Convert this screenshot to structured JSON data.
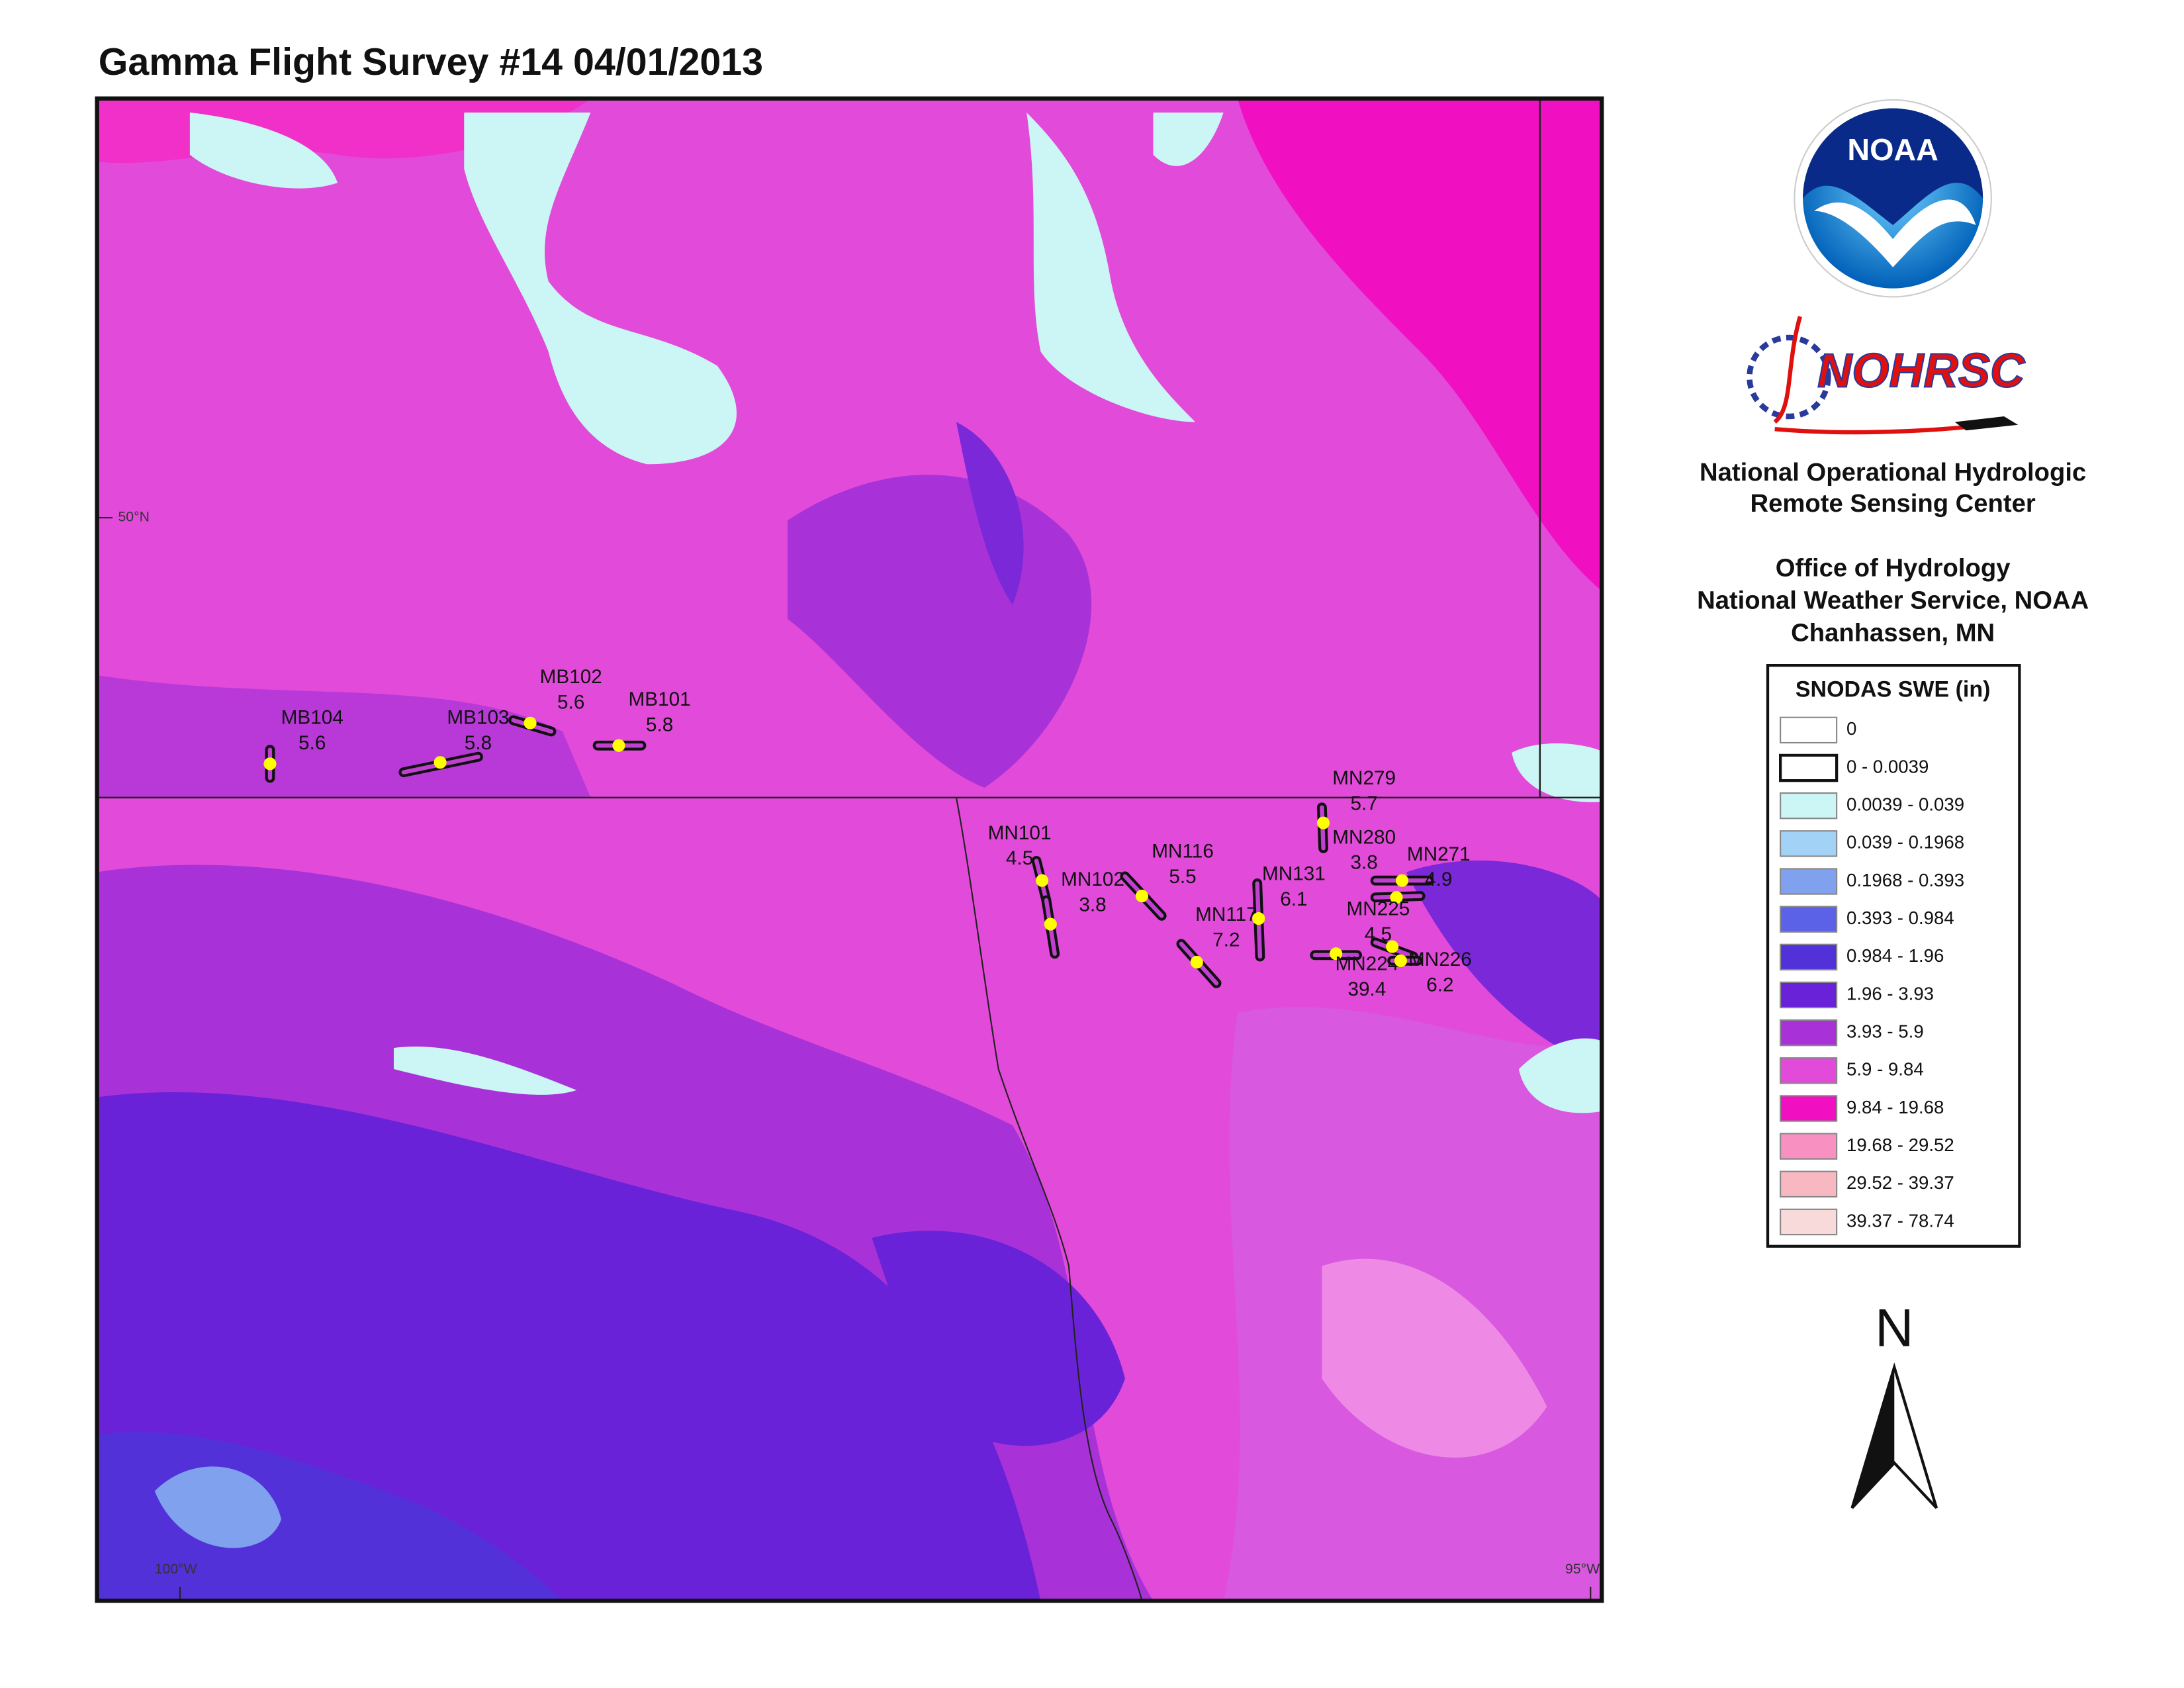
{
  "title": "Gamma Flight Survey #14 04/01/2013",
  "map": {
    "lat_labels": [
      "50°N"
    ],
    "lon_labels": [
      "100°W",
      "95°W"
    ]
  },
  "flight_lines": [
    {
      "name": "MB104",
      "swe": 5.6
    },
    {
      "name": "MB103",
      "swe": 5.8
    },
    {
      "name": "MB102",
      "swe": 5.6
    },
    {
      "name": "MB101",
      "swe": 5.8
    },
    {
      "name": "MN279",
      "swe": 5.7
    },
    {
      "name": "MN101",
      "swe": 4.5
    },
    {
      "name": "MN102",
      "swe": 3.8
    },
    {
      "name": "MN116",
      "swe": 5.5
    },
    {
      "name": "MN117",
      "swe": 7.2
    },
    {
      "name": "MN131",
      "swe": 6.1
    },
    {
      "name": "MN280",
      "swe": 3.8
    },
    {
      "name": "MN271",
      "swe": 4.9
    },
    {
      "name": "MN225",
      "swe": 4.5
    },
    {
      "name": "MN224",
      "swe": 39.4
    },
    {
      "name": "MN226",
      "swe": 6.2
    }
  ],
  "logos": {
    "noaa": "NOAA",
    "nohrsc": "NOHRSC"
  },
  "agency": [
    "National Operational Hydrologic",
    "Remote Sensing Center",
    "Office of Hydrology",
    "National Weather Service, NOAA",
    "Chanhassen, MN"
  ],
  "legend": {
    "title": "SNODAS SWE (in)",
    "items": [
      {
        "label": "0",
        "color": "#ffffff"
      },
      {
        "label": "0 - 0.0039",
        "color": "#ffffff"
      },
      {
        "label": "0.0039 - 0.039",
        "color": "#ccf5f5"
      },
      {
        "label": "0.039 - 0.1968",
        "color": "#a2d2f6"
      },
      {
        "label": "0.1968 - 0.393",
        "color": "#80a2ee"
      },
      {
        "label": "0.393 - 0.984",
        "color": "#5c62e8"
      },
      {
        "label": "0.984 - 1.96",
        "color": "#5232d8"
      },
      {
        "label": "1.96 - 3.93",
        "color": "#6a22d8"
      },
      {
        "label": "3.93 - 5.9",
        "color": "#a832d8"
      },
      {
        "label": "5.9 - 9.84",
        "color": "#e24ada"
      },
      {
        "label": "9.84 - 19.68",
        "color": "#f010c2"
      },
      {
        "label": "19.68 - 29.52",
        "color": "#f890c2"
      },
      {
        "label": "29.52 - 39.37",
        "color": "#f8b8c2"
      },
      {
        "label": "39.37 - 78.74",
        "color": "#f8dada"
      }
    ]
  },
  "north_arrow": "N"
}
